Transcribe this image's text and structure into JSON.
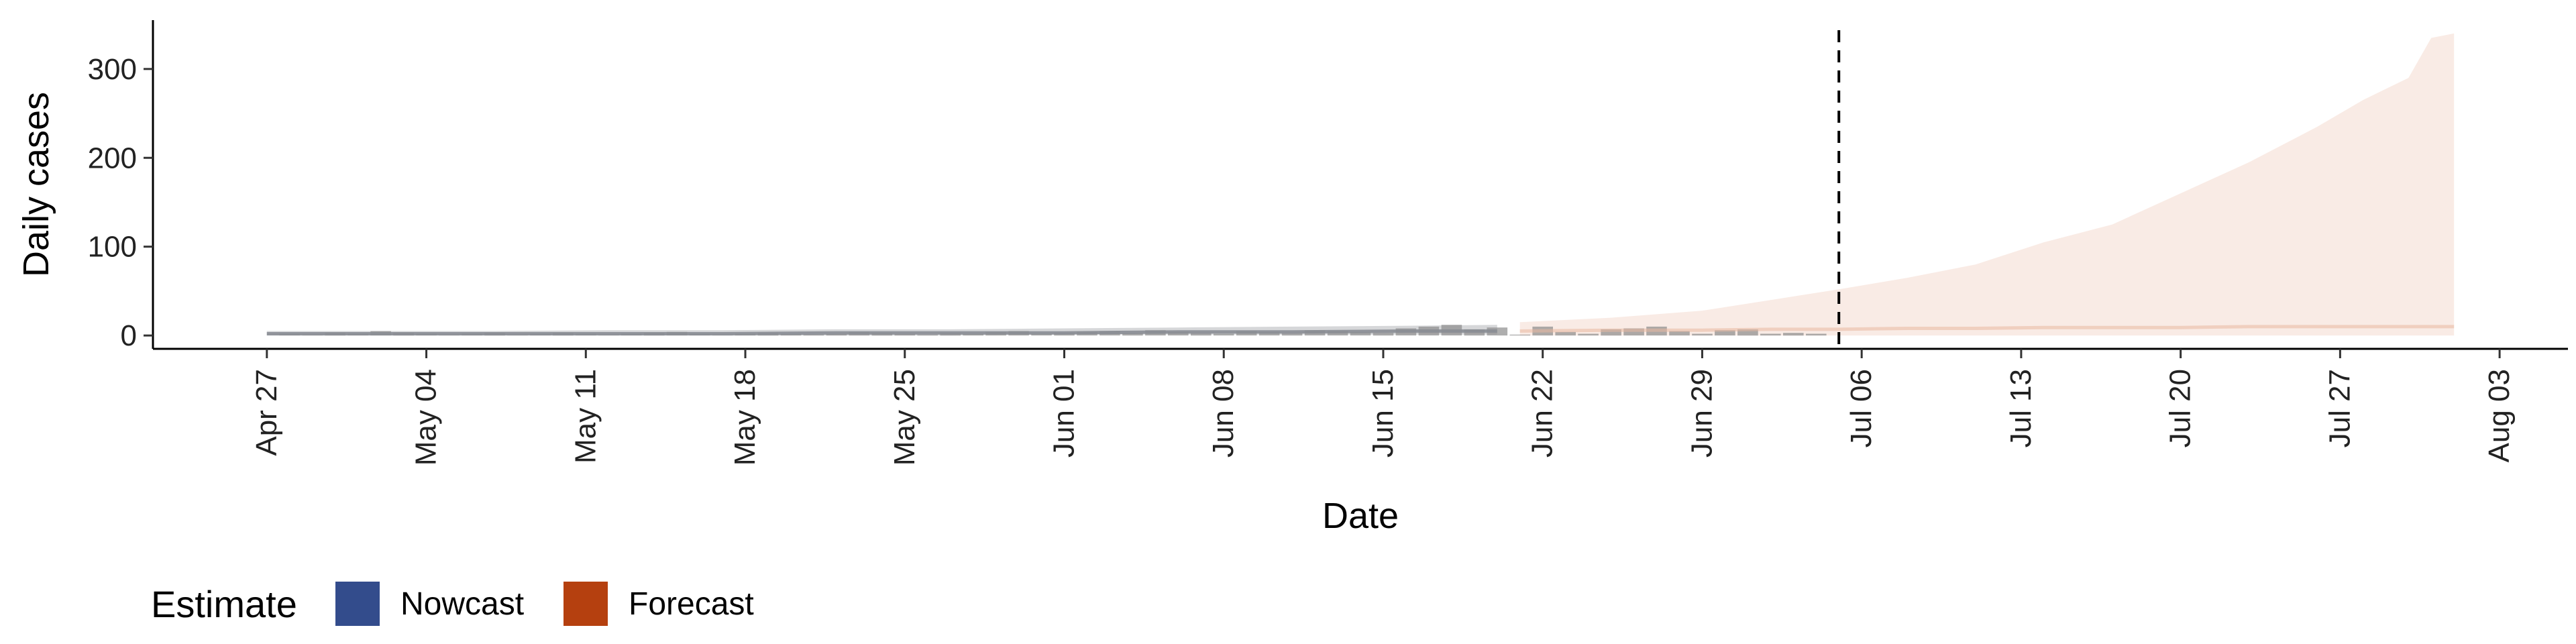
{
  "chart_data": {
    "type": "area",
    "xlabel": "Date",
    "ylabel": "Daily cases",
    "x_range": [
      "2020-04-22",
      "2020-08-06"
    ],
    "ylim": [
      -15,
      355
    ],
    "y_ticks": [
      0,
      100,
      200,
      300
    ],
    "x_ticks": [
      {
        "date": "2020-04-27",
        "label": "Apr 27"
      },
      {
        "date": "2020-05-04",
        "label": "May 04"
      },
      {
        "date": "2020-05-11",
        "label": "May 11"
      },
      {
        "date": "2020-05-18",
        "label": "May 18"
      },
      {
        "date": "2020-05-25",
        "label": "May 25"
      },
      {
        "date": "2020-06-01",
        "label": "Jun 01"
      },
      {
        "date": "2020-06-08",
        "label": "Jun 08"
      },
      {
        "date": "2020-06-15",
        "label": "Jun 15"
      },
      {
        "date": "2020-06-22",
        "label": "Jun 22"
      },
      {
        "date": "2020-06-29",
        "label": "Jun 29"
      },
      {
        "date": "2020-07-06",
        "label": "Jul 06"
      },
      {
        "date": "2020-07-13",
        "label": "Jul 13"
      },
      {
        "date": "2020-07-20",
        "label": "Jul 20"
      },
      {
        "date": "2020-07-27",
        "label": "Jul 27"
      },
      {
        "date": "2020-08-03",
        "label": "Aug 03"
      }
    ],
    "vline": {
      "date": "2020-07-05",
      "style": "dashed",
      "color": "#000000"
    },
    "legend": {
      "title": "Estimate",
      "position": "bottom-left",
      "entries": [
        {
          "label": "Nowcast",
          "color": "#334C8C"
        },
        {
          "label": "Forecast",
          "color": "#B5400F"
        }
      ]
    },
    "reported_cases": {
      "color": "#8C8C8C",
      "x": [
        "2020-04-28",
        "2020-04-29",
        "2020-04-30",
        "2020-05-01",
        "2020-05-02",
        "2020-05-03",
        "2020-05-04",
        "2020-05-05",
        "2020-05-06",
        "2020-05-07",
        "2020-05-08",
        "2020-05-09",
        "2020-05-10",
        "2020-05-11",
        "2020-05-12",
        "2020-05-13",
        "2020-05-14",
        "2020-05-15",
        "2020-05-16",
        "2020-05-17",
        "2020-05-18",
        "2020-05-19",
        "2020-05-20",
        "2020-05-21",
        "2020-05-22",
        "2020-05-23",
        "2020-05-24",
        "2020-05-25",
        "2020-05-26",
        "2020-05-27",
        "2020-05-28",
        "2020-05-29",
        "2020-05-30",
        "2020-05-31",
        "2020-06-01",
        "2020-06-02",
        "2020-06-03",
        "2020-06-04",
        "2020-06-05",
        "2020-06-06",
        "2020-06-07",
        "2020-06-08",
        "2020-06-09",
        "2020-06-10",
        "2020-06-11",
        "2020-06-12",
        "2020-06-13",
        "2020-06-14",
        "2020-06-15",
        "2020-06-16",
        "2020-06-17",
        "2020-06-18",
        "2020-06-19",
        "2020-06-20",
        "2020-06-21",
        "2020-06-22",
        "2020-06-23",
        "2020-06-24",
        "2020-06-25",
        "2020-06-26",
        "2020-06-27",
        "2020-06-28",
        "2020-06-29",
        "2020-06-30",
        "2020-07-01",
        "2020-07-02",
        "2020-07-03",
        "2020-07-04"
      ],
      "values": [
        2,
        1,
        3,
        2,
        5,
        3,
        2,
        1,
        2,
        3,
        1,
        2,
        3,
        2,
        1,
        2,
        3,
        4,
        2,
        1,
        2,
        3,
        2,
        1,
        2,
        4,
        3,
        2,
        1,
        3,
        2,
        4,
        5,
        2,
        3,
        4,
        5,
        3,
        6,
        4,
        3,
        2,
        5,
        4,
        3,
        6,
        5,
        4,
        3,
        8,
        10,
        12,
        7,
        9,
        1,
        10,
        4,
        2,
        7,
        8,
        10,
        5,
        2,
        6,
        7,
        2,
        3,
        2
      ]
    },
    "series": [
      {
        "name": "Nowcast",
        "color": "#8A8D93",
        "x": [
          "2020-04-27",
          "2020-05-02",
          "2020-05-07",
          "2020-05-12",
          "2020-05-17",
          "2020-05-22",
          "2020-05-27",
          "2020-06-01",
          "2020-06-06",
          "2020-06-11",
          "2020-06-16",
          "2020-06-20"
        ],
        "median": [
          2,
          2,
          2,
          2,
          2,
          3,
          3,
          3,
          4,
          4,
          5,
          5
        ],
        "lower": [
          0,
          0,
          0,
          0,
          0,
          0,
          0,
          1,
          1,
          1,
          1,
          1
        ],
        "upper": [
          5,
          5,
          5,
          6,
          6,
          7,
          7,
          8,
          9,
          10,
          11,
          12
        ]
      },
      {
        "name": "Forecast",
        "color": "#E9B8A0",
        "x": [
          "2020-06-21",
          "2020-06-25",
          "2020-06-29",
          "2020-07-02",
          "2020-07-05",
          "2020-07-08",
          "2020-07-11",
          "2020-07-14",
          "2020-07-17",
          "2020-07-20",
          "2020-07-23",
          "2020-07-26",
          "2020-07-28",
          "2020-07-30",
          "2020-07-31",
          "2020-08-01"
        ],
        "median": [
          5,
          6,
          6,
          7,
          7,
          8,
          8,
          9,
          9,
          9,
          10,
          10,
          10,
          10,
          10,
          10
        ],
        "lower": [
          0,
          0,
          0,
          0,
          0,
          0,
          0,
          0,
          0,
          0,
          0,
          0,
          0,
          0,
          0,
          0
        ],
        "upper": [
          15,
          20,
          28,
          40,
          52,
          65,
          80,
          105,
          125,
          160,
          195,
          235,
          265,
          290,
          335,
          340
        ]
      }
    ]
  }
}
